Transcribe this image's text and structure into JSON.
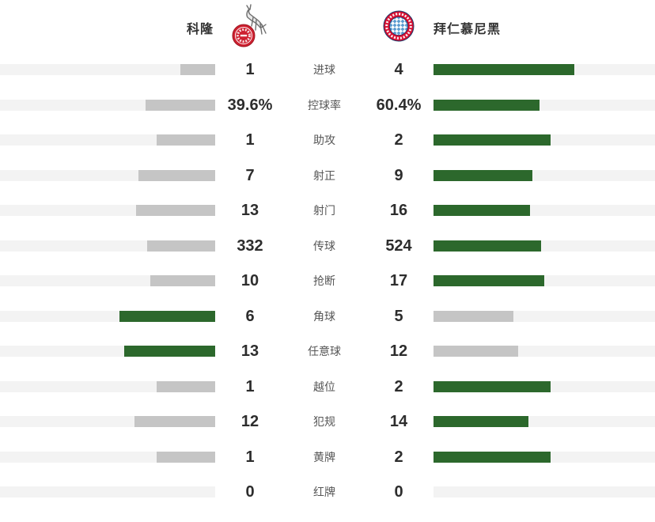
{
  "header": {
    "home_team": "科隆",
    "away_team": "拜仁慕尼黑",
    "home_logo": "koeln-crest",
    "away_logo": "bayern-crest"
  },
  "colors": {
    "bar_green": "#2c682c",
    "bar_gray": "#c5c5c5",
    "bar_track": "#f3f3f3",
    "value_text": "#2d2d2d",
    "label_text": "#565656",
    "team_text": "#333333",
    "koeln_red": "#ce2030",
    "bayern_red": "#d60c2f",
    "bayern_blue": "#5b9bd0"
  },
  "chart_data": {
    "type": "bar",
    "orientation": "horizontal-opposed",
    "legend": [
      "科隆",
      "拜仁慕尼黑"
    ],
    "legend_position": "top",
    "grid": false,
    "bar_scale_note": "bar length = value / (home+away) * max width, green = larger side, gray = smaller side",
    "categories": [
      "进球",
      "控球率",
      "助攻",
      "射正",
      "射门",
      "传球",
      "抢断",
      "角球",
      "任意球",
      "越位",
      "犯规",
      "黄牌",
      "红牌"
    ],
    "series": [
      {
        "name": "科隆",
        "values": [
          1,
          39.6,
          1,
          7,
          13,
          332,
          10,
          6,
          13,
          1,
          12,
          1,
          0
        ]
      },
      {
        "name": "拜仁慕尼黑",
        "values": [
          4,
          60.4,
          2,
          9,
          16,
          524,
          17,
          5,
          12,
          2,
          14,
          2,
          0
        ]
      }
    ],
    "rows": [
      {
        "label": "进球",
        "home": "1",
        "away": "4"
      },
      {
        "label": "控球率",
        "home": "39.6%",
        "away": "60.4%"
      },
      {
        "label": "助攻",
        "home": "1",
        "away": "2"
      },
      {
        "label": "射正",
        "home": "7",
        "away": "9"
      },
      {
        "label": "射门",
        "home": "13",
        "away": "16"
      },
      {
        "label": "传球",
        "home": "332",
        "away": "524"
      },
      {
        "label": "抢断",
        "home": "10",
        "away": "17"
      },
      {
        "label": "角球",
        "home": "6",
        "away": "5"
      },
      {
        "label": "任意球",
        "home": "13",
        "away": "12"
      },
      {
        "label": "越位",
        "home": "1",
        "away": "2"
      },
      {
        "label": "犯规",
        "home": "12",
        "away": "14"
      },
      {
        "label": "黄牌",
        "home": "1",
        "away": "2"
      },
      {
        "label": "红牌",
        "home": "0",
        "away": "0"
      }
    ]
  }
}
